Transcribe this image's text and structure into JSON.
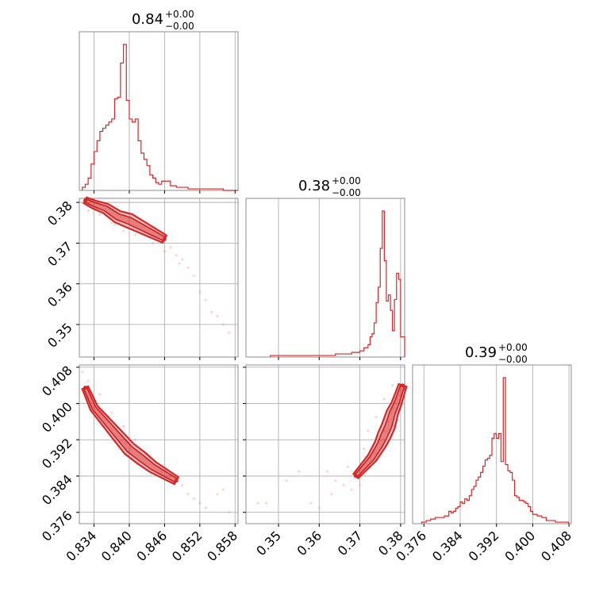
{
  "chart_data": {
    "type": "corner",
    "color": "#d62728",
    "parameters": [
      {
        "index": 0,
        "title": {
          "value": "0.84",
          "upper": "+0.00",
          "lower": "−0.00"
        },
        "range": [
          0.8315,
          0.8585
        ],
        "ticks": [
          0.834,
          0.84,
          0.846,
          0.852,
          0.858
        ],
        "tick_labels": [
          "0.834",
          "0.840",
          "0.846",
          "0.852",
          "0.858"
        ],
        "hist_x": [
          0.832,
          0.8325,
          0.833,
          0.8335,
          0.834,
          0.8345,
          0.835,
          0.8355,
          0.836,
          0.8365,
          0.837,
          0.8375,
          0.838,
          0.8385,
          0.839,
          0.8395,
          0.84,
          0.8405,
          0.841,
          0.8415,
          0.842,
          0.8425,
          0.843,
          0.8435,
          0.844,
          0.8445,
          0.845,
          0.8455,
          0.846,
          0.847,
          0.848,
          0.849,
          0.85,
          0.851,
          0.852,
          0.853,
          0.854,
          0.855,
          0.856,
          0.857,
          0.858
        ],
        "hist_y": [
          0.02,
          0.04,
          0.08,
          0.17,
          0.25,
          0.32,
          0.38,
          0.4,
          0.42,
          0.44,
          0.46,
          0.59,
          0.6,
          0.82,
          0.94,
          0.58,
          0.46,
          0.44,
          0.46,
          0.32,
          0.24,
          0.2,
          0.16,
          0.1,
          0.08,
          0.05,
          0.04,
          0.06,
          0.06,
          0.03,
          0.02,
          0.02,
          0.01,
          0.01,
          0.01,
          0.01,
          0.01,
          0.01,
          0.0,
          0.0,
          0.0
        ]
      },
      {
        "index": 1,
        "title": {
          "value": "0.38",
          "upper": "+0.00",
          "lower": "−0.00"
        },
        "range": [
          0.342,
          0.381
        ],
        "ticks": [
          0.35,
          0.36,
          0.37,
          0.38
        ],
        "tick_labels": [
          "0.35",
          "0.36",
          "0.37",
          "0.38"
        ],
        "hist_x": [
          0.348,
          0.35,
          0.352,
          0.354,
          0.356,
          0.358,
          0.36,
          0.362,
          0.364,
          0.366,
          0.368,
          0.369,
          0.37,
          0.371,
          0.372,
          0.3725,
          0.373,
          0.3735,
          0.374,
          0.3745,
          0.375,
          0.3755,
          0.376,
          0.3765,
          0.377,
          0.3775,
          0.378,
          0.3785,
          0.379,
          0.3795,
          0.38,
          0.3805
        ],
        "hist_y": [
          0.01,
          0.01,
          0.01,
          0.01,
          0.01,
          0.01,
          0.01,
          0.01,
          0.02,
          0.02,
          0.03,
          0.03,
          0.04,
          0.06,
          0.08,
          0.13,
          0.15,
          0.22,
          0.35,
          0.45,
          0.7,
          0.94,
          0.62,
          0.36,
          0.4,
          0.3,
          0.17,
          0.37,
          0.54,
          0.5,
          0.13,
          0.13
        ]
      },
      {
        "index": 2,
        "title": {
          "value": "0.39",
          "upper": "+0.00",
          "lower": "−0.00"
        },
        "range": [
          0.3735,
          0.4085
        ],
        "ticks": [
          0.376,
          0.384,
          0.392,
          0.4,
          0.408
        ],
        "tick_labels": [
          "0.376",
          "0.384",
          "0.392",
          "0.400",
          "0.408"
        ],
        "hist_x": [
          0.3755,
          0.3765,
          0.3775,
          0.3785,
          0.3795,
          0.3805,
          0.3815,
          0.382,
          0.3825,
          0.383,
          0.3835,
          0.384,
          0.3845,
          0.385,
          0.3855,
          0.386,
          0.3865,
          0.387,
          0.3875,
          0.388,
          0.3885,
          0.389,
          0.3895,
          0.39,
          0.3905,
          0.391,
          0.3915,
          0.392,
          0.3925,
          0.393,
          0.3935,
          0.394,
          0.3945,
          0.395,
          0.3955,
          0.396,
          0.3965,
          0.397,
          0.3975,
          0.398,
          0.3985,
          0.399,
          0.3995,
          0.4,
          0.401,
          0.402,
          0.403,
          0.404,
          0.405,
          0.406,
          0.407
        ],
        "hist_y": [
          0.01,
          0.02,
          0.03,
          0.04,
          0.04,
          0.05,
          0.08,
          0.07,
          0.08,
          0.1,
          0.11,
          0.14,
          0.13,
          0.16,
          0.15,
          0.18,
          0.22,
          0.24,
          0.28,
          0.3,
          0.33,
          0.37,
          0.41,
          0.42,
          0.44,
          0.55,
          0.58,
          0.55,
          0.58,
          0.4,
          0.94,
          0.38,
          0.34,
          0.33,
          0.28,
          0.18,
          0.17,
          0.15,
          0.15,
          0.14,
          0.13,
          0.11,
          0.08,
          0.06,
          0.05,
          0.04,
          0.02,
          0.02,
          0.01,
          0.01,
          0.01
        ]
      }
    ],
    "pairs": [
      {
        "x_param": 0,
        "y_param": 1,
        "contour_points": [
          [
            0.8325,
            0.3805
          ],
          [
            0.834,
            0.3795
          ],
          [
            0.836,
            0.3785
          ],
          [
            0.838,
            0.3765
          ],
          [
            0.84,
            0.3755
          ],
          [
            0.842,
            0.374
          ],
          [
            0.844,
            0.3725
          ],
          [
            0.846,
            0.371
          ]
        ],
        "scatter_points": [
          [
            0.832,
            0.38
          ],
          [
            0.833,
            0.378
          ],
          [
            0.835,
            0.377
          ],
          [
            0.837,
            0.375
          ],
          [
            0.839,
            0.373
          ],
          [
            0.841,
            0.372
          ],
          [
            0.844,
            0.37
          ],
          [
            0.846,
            0.368
          ],
          [
            0.848,
            0.367
          ],
          [
            0.849,
            0.366
          ],
          [
            0.85,
            0.364
          ],
          [
            0.851,
            0.362
          ],
          [
            0.852,
            0.358
          ],
          [
            0.853,
            0.356
          ],
          [
            0.854,
            0.353
          ],
          [
            0.855,
            0.352
          ],
          [
            0.856,
            0.35
          ],
          [
            0.857,
            0.348
          ],
          [
            0.8345,
            0.3785
          ],
          [
            0.8375,
            0.3745
          ],
          [
            0.8405,
            0.3735
          ],
          [
            0.8435,
            0.3715
          ],
          [
            0.847,
            0.369
          ],
          [
            0.8485,
            0.365
          ]
        ]
      },
      {
        "x_param": 0,
        "y_param": 2,
        "contour_points": [
          [
            0.8325,
            0.4035
          ],
          [
            0.834,
            0.399
          ],
          [
            0.836,
            0.396
          ],
          [
            0.838,
            0.393
          ],
          [
            0.84,
            0.39
          ],
          [
            0.842,
            0.388
          ],
          [
            0.844,
            0.386
          ],
          [
            0.846,
            0.3845
          ],
          [
            0.848,
            0.383
          ]
        ],
        "scatter_points": [
          [
            0.832,
            0.407
          ],
          [
            0.833,
            0.405
          ],
          [
            0.835,
            0.402
          ],
          [
            0.837,
            0.398
          ],
          [
            0.839,
            0.395
          ],
          [
            0.841,
            0.392
          ],
          [
            0.843,
            0.389
          ],
          [
            0.845,
            0.386
          ],
          [
            0.847,
            0.384
          ],
          [
            0.849,
            0.382
          ],
          [
            0.85,
            0.38
          ],
          [
            0.851,
            0.379
          ],
          [
            0.852,
            0.378
          ],
          [
            0.853,
            0.377
          ],
          [
            0.855,
            0.38
          ],
          [
            0.856,
            0.381
          ],
          [
            0.857,
            0.376
          ],
          [
            0.8335,
            0.3995
          ],
          [
            0.8365,
            0.397
          ],
          [
            0.8395,
            0.3915
          ],
          [
            0.8425,
            0.3895
          ],
          [
            0.8455,
            0.385
          ],
          [
            0.8475,
            0.3825
          ]
        ]
      },
      {
        "x_param": 1,
        "y_param": 2,
        "contour_points": [
          [
            0.369,
            0.384
          ],
          [
            0.371,
            0.386
          ],
          [
            0.373,
            0.388
          ],
          [
            0.375,
            0.391
          ],
          [
            0.376,
            0.393
          ],
          [
            0.377,
            0.395
          ],
          [
            0.378,
            0.398
          ],
          [
            0.379,
            0.4
          ],
          [
            0.3805,
            0.404
          ]
        ],
        "scatter_points": [
          [
            0.345,
            0.378
          ],
          [
            0.347,
            0.378
          ],
          [
            0.352,
            0.383
          ],
          [
            0.355,
            0.385
          ],
          [
            0.358,
            0.378
          ],
          [
            0.36,
            0.377
          ],
          [
            0.362,
            0.385
          ],
          [
            0.364,
            0.383
          ],
          [
            0.366,
            0.382
          ],
          [
            0.368,
            0.381
          ],
          [
            0.37,
            0.382
          ],
          [
            0.372,
            0.386
          ],
          [
            0.374,
            0.389
          ],
          [
            0.375,
            0.392
          ],
          [
            0.376,
            0.394
          ],
          [
            0.377,
            0.396
          ],
          [
            0.378,
            0.399
          ],
          [
            0.379,
            0.401
          ],
          [
            0.38,
            0.403
          ],
          [
            0.372,
            0.394
          ],
          [
            0.374,
            0.397
          ],
          [
            0.376,
            0.401
          ],
          [
            0.378,
            0.404
          ],
          [
            0.371,
            0.39
          ],
          [
            0.367,
            0.386
          ],
          [
            0.363,
            0.38
          ]
        ]
      }
    ],
    "grid": true
  }
}
